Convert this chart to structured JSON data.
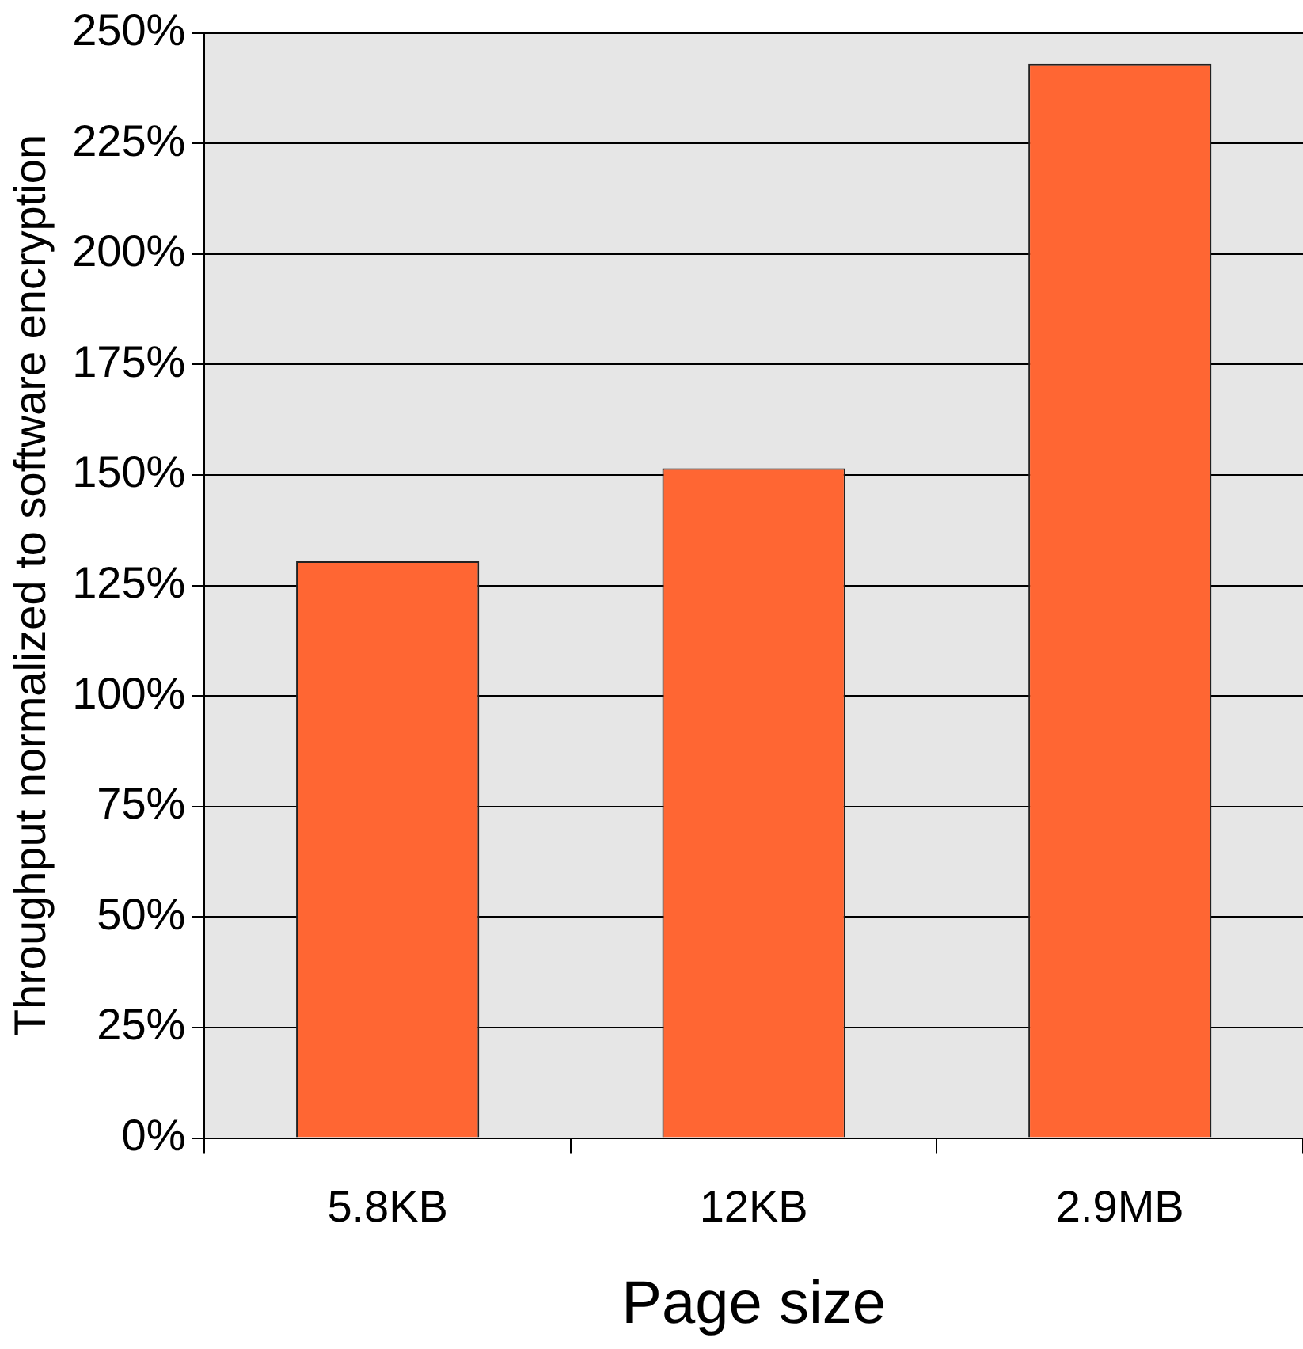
{
  "chart_data": {
    "type": "bar",
    "xlabel": "Page size",
    "ylabel": "Throughput normalized to software encryption",
    "categories": [
      "5.8KB",
      "12KB",
      "2.9MB"
    ],
    "values": [
      130.5,
      151.5,
      243
    ],
    "color": "#ff6633",
    "ylim": [
      0,
      250
    ],
    "yticks": [
      {
        "value": 0,
        "label": "0%"
      },
      {
        "value": 25,
        "label": "25%"
      },
      {
        "value": 50,
        "label": "50%"
      },
      {
        "value": 75,
        "label": "75%"
      },
      {
        "value": 100,
        "label": "100%"
      },
      {
        "value": 125,
        "label": "125%"
      },
      {
        "value": 150,
        "label": "150%"
      },
      {
        "value": 175,
        "label": "175%"
      },
      {
        "value": 200,
        "label": "200%"
      },
      {
        "value": 225,
        "label": "225%"
      },
      {
        "value": 250,
        "label": "250%"
      }
    ],
    "grid": "y"
  }
}
